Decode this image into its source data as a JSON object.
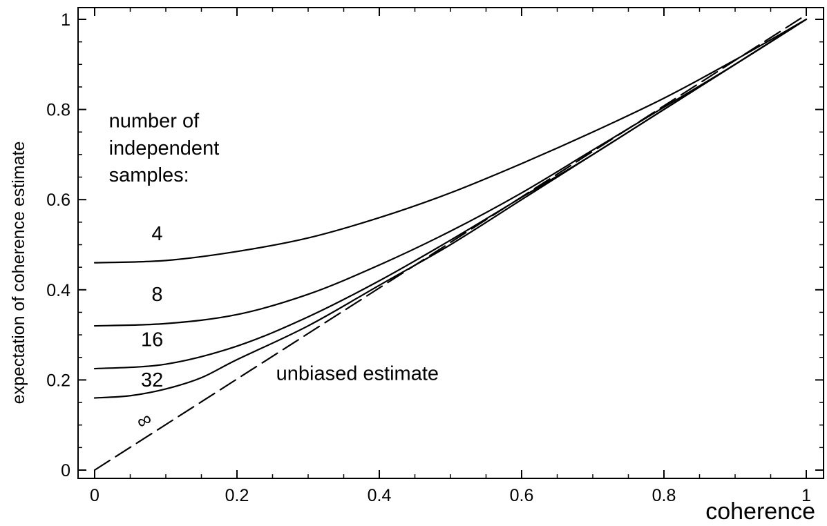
{
  "chart_data": {
    "type": "line",
    "xlabel": "coherence",
    "ylabel": "expectation of coherence estimate",
    "xlim": [
      0,
      1
    ],
    "ylim": [
      0,
      1
    ],
    "xticks": [
      "0",
      "0.2",
      "0.4",
      "0.6",
      "0.8",
      "1"
    ],
    "yticks": [
      "0",
      "0.2",
      "0.4",
      "0.6",
      "0.8",
      "1"
    ],
    "grid": false,
    "annotations": [
      "number of",
      "independent",
      "samples:",
      "unbiased estimate"
    ],
    "series": [
      {
        "name": "4",
        "style": "solid",
        "x": [
          0,
          0.1,
          0.2,
          0.3,
          0.4,
          0.5,
          0.6,
          0.7,
          0.8,
          0.9,
          1.0
        ],
        "y": [
          0.46,
          0.465,
          0.485,
          0.515,
          0.56,
          0.615,
          0.68,
          0.75,
          0.825,
          0.91,
          1.0
        ]
      },
      {
        "name": "8",
        "style": "solid",
        "x": [
          0,
          0.1,
          0.2,
          0.3,
          0.4,
          0.5,
          0.6,
          0.7,
          0.8,
          0.9,
          1.0
        ],
        "y": [
          0.32,
          0.325,
          0.345,
          0.39,
          0.455,
          0.53,
          0.615,
          0.71,
          0.805,
          0.9,
          1.0
        ]
      },
      {
        "name": "16",
        "style": "solid",
        "x": [
          0,
          0.1,
          0.2,
          0.3,
          0.4,
          0.5,
          0.6,
          0.7,
          0.8,
          0.9,
          1.0
        ],
        "y": [
          0.225,
          0.235,
          0.275,
          0.34,
          0.42,
          0.51,
          0.605,
          0.7,
          0.8,
          0.9,
          1.0
        ]
      },
      {
        "name": "32",
        "style": "solid",
        "x": [
          0,
          0.05,
          0.1,
          0.15,
          0.2,
          0.3,
          0.4,
          0.5,
          0.6,
          0.7,
          0.8,
          0.9,
          1.0
        ],
        "y": [
          0.16,
          0.165,
          0.18,
          0.205,
          0.245,
          0.32,
          0.41,
          0.5,
          0.6,
          0.7,
          0.8,
          0.9,
          1.0
        ]
      },
      {
        "name": "∞",
        "style": "dashed",
        "x": [
          0,
          1.0
        ],
        "y": [
          0,
          1.01
        ]
      }
    ],
    "series_label_positions": [
      {
        "name": "4",
        "x": 0.08,
        "y": 0.51
      },
      {
        "name": "8",
        "x": 0.08,
        "y": 0.375
      },
      {
        "name": "16",
        "x": 0.065,
        "y": 0.275
      },
      {
        "name": "32",
        "x": 0.065,
        "y": 0.185
      },
      {
        "name": "∞",
        "x": 0.065,
        "y": 0.09
      }
    ],
    "annotation_positions": [
      {
        "text": "number of",
        "x": 0.02,
        "y": 0.76
      },
      {
        "text": "independent",
        "x": 0.02,
        "y": 0.7
      },
      {
        "text": "samples:",
        "x": 0.02,
        "y": 0.64
      },
      {
        "text": "unbiased estimate",
        "x": 0.255,
        "y": 0.2
      }
    ]
  }
}
